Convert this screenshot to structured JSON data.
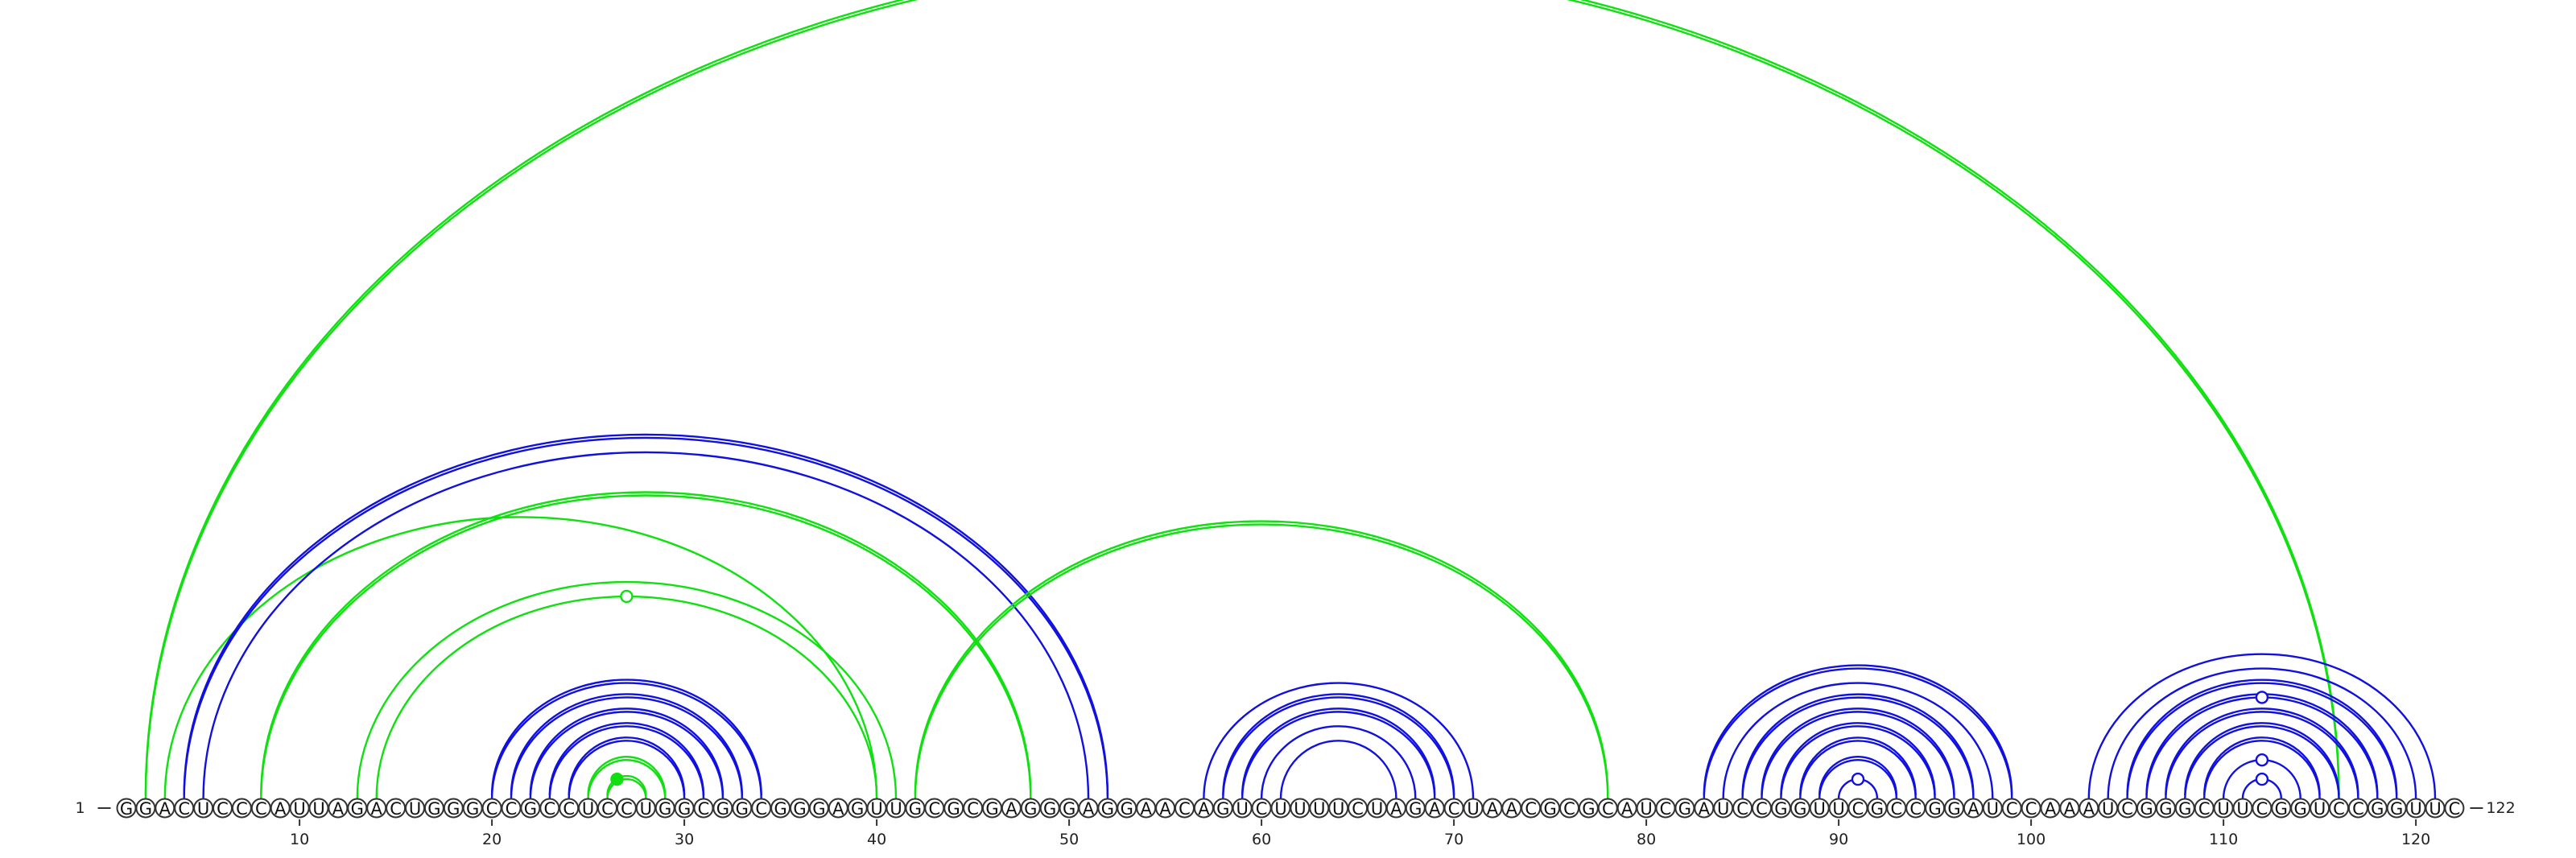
{
  "diagram": {
    "type": "rna-arc-diagram",
    "sequence": "GGACUCCCAUUAGACUGGGCCGCCUCCUGGCGGCGGGAGUUGCGCGAGGGAGGAACAGUCUUUUCUAGACUAACGCGCAUCGAUCCGGUUCGCCGGAUCCAAAUCGGGCUUCGGUCCGGUUC",
    "length": 122,
    "start_label": "1",
    "end_label": "122",
    "tick_positions": [
      10,
      20,
      30,
      40,
      50,
      60,
      70,
      80,
      90,
      100,
      110,
      120
    ],
    "colors": {
      "blue": "#1010e0",
      "green": "#10e010"
    },
    "arcs": [
      {
        "i": 2,
        "j": 116,
        "color": "green",
        "double": true
      },
      {
        "i": 3,
        "j": 40,
        "color": "green",
        "double": false
      },
      {
        "i": 4,
        "j": 52,
        "color": "blue",
        "double": true
      },
      {
        "i": 5,
        "j": 51,
        "color": "blue",
        "double": false
      },
      {
        "i": 8,
        "j": 48,
        "color": "green",
        "double": true
      },
      {
        "i": 13,
        "j": 41,
        "color": "green",
        "double": false
      },
      {
        "i": 14,
        "j": 40,
        "color": "green",
        "double": false
      },
      {
        "i": 20,
        "j": 34,
        "color": "blue",
        "double": true
      },
      {
        "i": 21,
        "j": 33,
        "color": "blue",
        "double": true
      },
      {
        "i": 22,
        "j": 32,
        "color": "blue",
        "double": true
      },
      {
        "i": 23,
        "j": 31,
        "color": "blue",
        "double": true
      },
      {
        "i": 24,
        "j": 30,
        "color": "blue",
        "double": true
      },
      {
        "i": 25,
        "j": 29,
        "color": "green",
        "double": true
      },
      {
        "i": 26,
        "j": 28,
        "color": "green",
        "double": true
      },
      {
        "i": 42,
        "j": 78,
        "color": "green",
        "double": true
      },
      {
        "i": 57,
        "j": 71,
        "color": "blue",
        "double": false
      },
      {
        "i": 58,
        "j": 70,
        "color": "blue",
        "double": true
      },
      {
        "i": 59,
        "j": 69,
        "color": "blue",
        "double": true
      },
      {
        "i": 60,
        "j": 68,
        "color": "blue",
        "double": false
      },
      {
        "i": 61,
        "j": 67,
        "color": "blue",
        "double": false
      },
      {
        "i": 83,
        "j": 99,
        "color": "blue",
        "double": true
      },
      {
        "i": 84,
        "j": 98,
        "color": "blue",
        "double": false
      },
      {
        "i": 85,
        "j": 97,
        "color": "blue",
        "double": true
      },
      {
        "i": 86,
        "j": 96,
        "color": "blue",
        "double": true
      },
      {
        "i": 87,
        "j": 95,
        "color": "blue",
        "double": true
      },
      {
        "i": 88,
        "j": 94,
        "color": "blue",
        "double": true
      },
      {
        "i": 89,
        "j": 93,
        "color": "blue",
        "double": true
      },
      {
        "i": 90,
        "j": 92,
        "color": "blue",
        "double": false
      },
      {
        "i": 103,
        "j": 121,
        "color": "blue",
        "double": false
      },
      {
        "i": 104,
        "j": 120,
        "color": "blue",
        "double": false
      },
      {
        "i": 105,
        "j": 119,
        "color": "blue",
        "double": true
      },
      {
        "i": 106,
        "j": 118,
        "color": "blue",
        "double": true
      },
      {
        "i": 107,
        "j": 117,
        "color": "blue",
        "double": true
      },
      {
        "i": 108,
        "j": 116,
        "color": "blue",
        "double": true
      },
      {
        "i": 109,
        "j": 115,
        "color": "blue",
        "double": true
      },
      {
        "i": 110,
        "j": 114,
        "color": "blue",
        "double": false
      },
      {
        "i": 111,
        "j": 113,
        "color": "blue",
        "double": false
      }
    ],
    "markers": [
      {
        "pos": 26.5,
        "arc_height_of": [
          26,
          28
        ],
        "color": "green",
        "filled": true
      },
      {
        "pos": 27,
        "arc_height_of": [
          14,
          40
        ],
        "color": "green",
        "filled": false
      },
      {
        "pos": 91,
        "arc_height_of": [
          90,
          92
        ],
        "color": "blue",
        "filled": false
      },
      {
        "pos": 112,
        "arc_height_of": [
          111,
          113
        ],
        "color": "blue",
        "filled": false
      },
      {
        "pos": 112,
        "arc_height_of": [
          110,
          114
        ],
        "color": "blue",
        "filled": false
      },
      {
        "pos": 112,
        "arc_height_of": [
          106,
          118
        ],
        "color": "blue",
        "filled": false
      }
    ]
  }
}
